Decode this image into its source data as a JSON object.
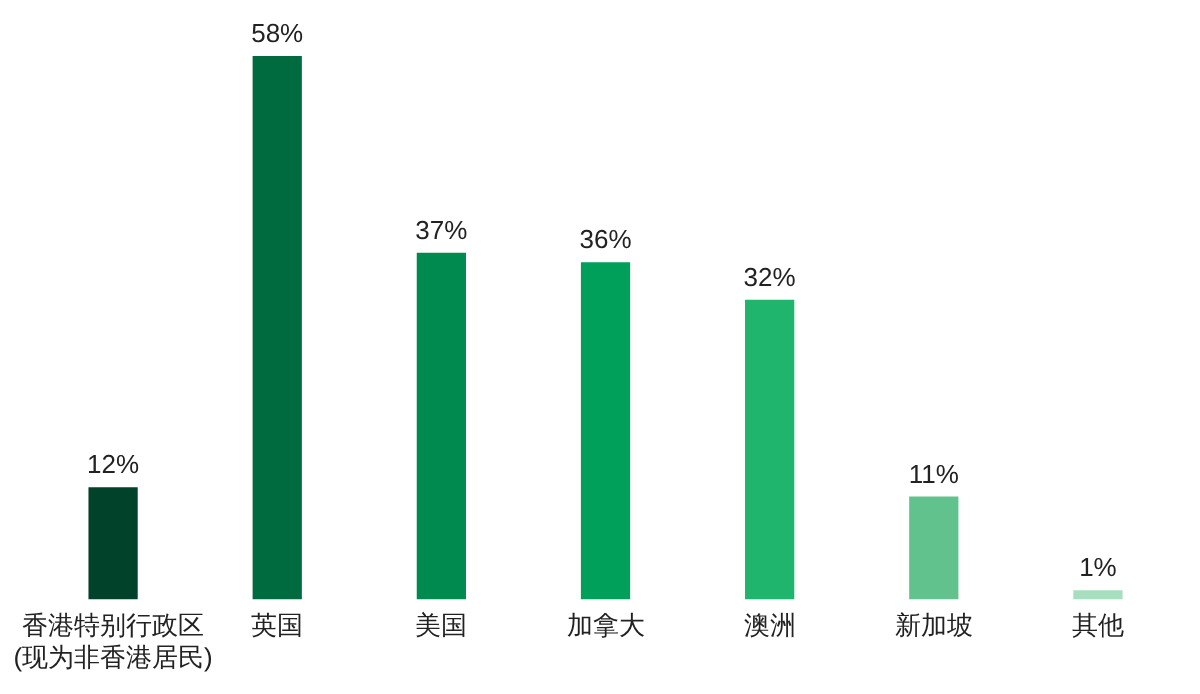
{
  "chart_data": {
    "type": "bar",
    "categories": [
      "香港特别行政区\n(现为非香港居民)",
      "英国",
      "美国",
      "加拿大",
      "澳洲",
      "新加坡",
      "其他"
    ],
    "values": [
      12,
      58,
      37,
      36,
      32,
      11,
      1
    ],
    "value_labels": [
      "12%",
      "58%",
      "37%",
      "36%",
      "32%",
      "11%",
      "1%"
    ],
    "colors": [
      "#00432a",
      "#006b3f",
      "#008a50",
      "#009f5a",
      "#1fb56d",
      "#62c28e",
      "#a6dfc0"
    ],
    "grid": false,
    "legend": false
  }
}
